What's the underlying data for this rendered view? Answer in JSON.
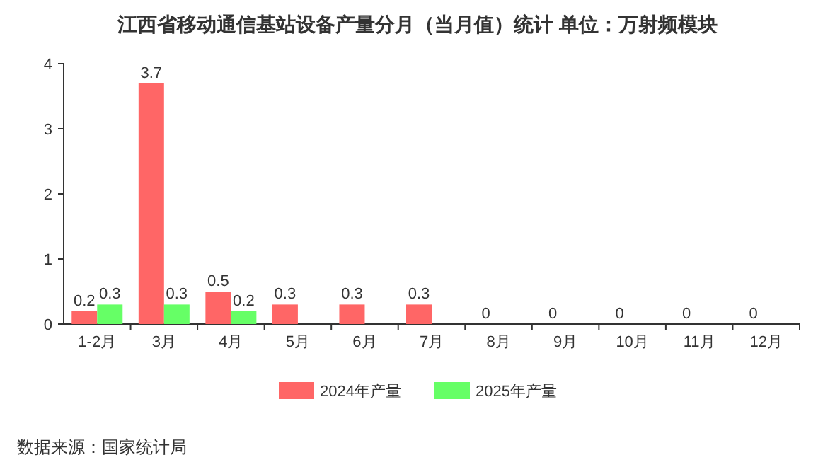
{
  "chart_data": {
    "type": "bar",
    "title": "江西省移动通信基站设备产量分月（当月值）统计  单位：万射频模块",
    "categories": [
      "1-2月",
      "3月",
      "4月",
      "5月",
      "6月",
      "7月",
      "8月",
      "9月",
      "10月",
      "11月",
      "12月"
    ],
    "series": [
      {
        "name": "2024年产量",
        "color": "#ff6666",
        "values": [
          0.2,
          3.7,
          0.5,
          0.3,
          0.3,
          0.3,
          0,
          0,
          0,
          0,
          0
        ]
      },
      {
        "name": "2025年产量",
        "color": "#66ff66",
        "values": [
          0.3,
          0.3,
          0.2,
          null,
          null,
          null,
          null,
          null,
          null,
          null,
          null
        ]
      }
    ],
    "ylim": [
      0,
      4
    ],
    "yticks": [
      0,
      1,
      2,
      3,
      4
    ],
    "data_labels": true,
    "legend": "bottom",
    "grid": false,
    "annotations": [
      "数据来源：国家统计局"
    ]
  }
}
